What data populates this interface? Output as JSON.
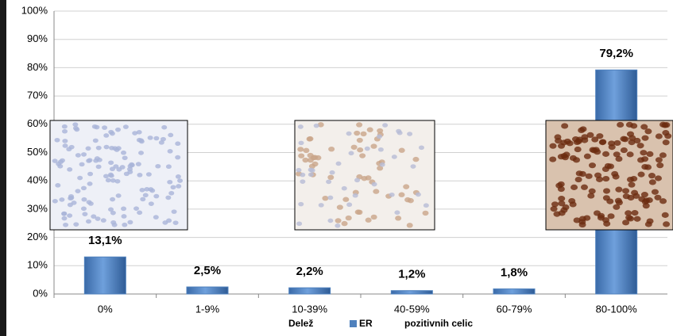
{
  "chart_data": {
    "type": "bar",
    "categories": [
      "0%",
      "1-9%",
      "10-39%",
      "40-59%",
      "60-79%",
      "80-100%"
    ],
    "series": [
      {
        "name": "ER",
        "color": "#4f81bd",
        "values": [
          13.1,
          2.5,
          2.2,
          1.2,
          1.8,
          79.2
        ],
        "value_labels": [
          "13,1%",
          "2,5%",
          "2,2%",
          "1,2%",
          "1,8%",
          "79,2%"
        ]
      }
    ],
    "xlabel_parts": [
      "Delež",
      "pozitivnih celic"
    ],
    "ylim": [
      0,
      100
    ],
    "yticks": [
      {
        "value": 0,
        "label": "0%"
      },
      {
        "value": 10,
        "label": "10%"
      },
      {
        "value": 20,
        "label": "20%"
      },
      {
        "value": 30,
        "label": "30%"
      },
      {
        "value": 40,
        "label": "40%"
      },
      {
        "value": 50,
        "label": "50%"
      },
      {
        "value": 60,
        "label": "60%"
      },
      {
        "value": 70,
        "label": "70%"
      },
      {
        "value": 80,
        "label": "80%"
      },
      {
        "value": 90,
        "label": "90%"
      },
      {
        "value": 100,
        "label": "100%"
      }
    ],
    "grid": true
  }
}
